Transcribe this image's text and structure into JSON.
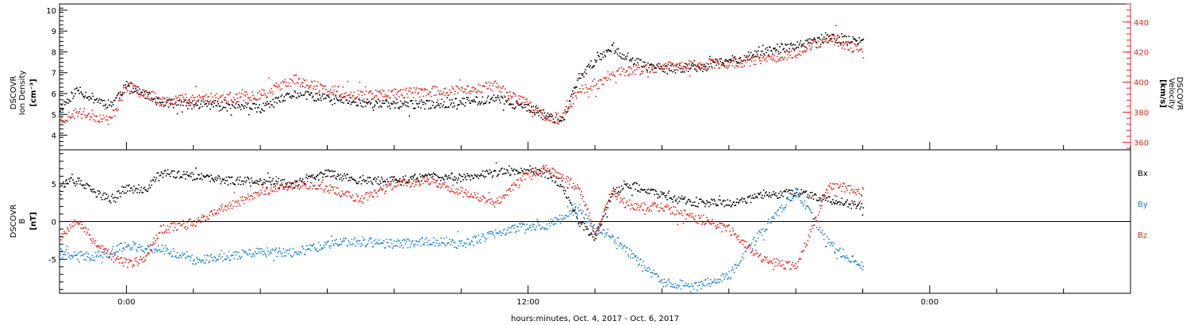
{
  "colors": {
    "black": "#000000",
    "red": "#e8231c",
    "blue": "#1f82d8"
  },
  "xaxis": {
    "label": "hours:minutes, Oct.  4, 2017 - Oct.  6, 2017",
    "range_hours": [
      -2,
      30
    ],
    "ticks": [
      {
        "hour": 0,
        "label": "0:00"
      },
      {
        "hour": 12,
        "label": "12:00"
      },
      {
        "hour": 24,
        "label": "0:00"
      }
    ]
  },
  "chart_data": [
    {
      "type": "scatter",
      "ylabel": [
        "DSCOVR",
        "Ion  Density",
        "[cm⁻³]"
      ],
      "ylim": [
        3.3,
        10.3
      ],
      "yticks": [
        4,
        5,
        6,
        7,
        8,
        9,
        10
      ],
      "right_axis": {
        "ylabel": [
          "DSCOVR",
          "Velocity",
          "[km/s]"
        ],
        "ylim": [
          355,
          452
        ],
        "yticks": [
          360,
          380,
          400,
          420,
          440
        ]
      },
      "series": [
        {
          "color": "black",
          "axis": "left",
          "x": [
            -2,
            -1.5,
            -1,
            -0.5,
            0,
            0.5,
            1,
            2,
            3,
            4,
            5,
            6,
            7,
            8,
            9,
            10,
            11,
            12,
            12.5,
            13,
            13.5,
            14,
            14.5,
            15,
            16,
            17,
            18,
            19,
            20,
            21,
            22
          ],
          "y": [
            5.3,
            6.2,
            5.8,
            5.5,
            6.4,
            6.0,
            5.6,
            5.5,
            5.5,
            5.3,
            6.0,
            5.8,
            5.6,
            5.5,
            5.5,
            5.6,
            5.8,
            5.3,
            5.0,
            4.7,
            6.8,
            7.6,
            8.3,
            7.6,
            7.2,
            7.3,
            7.6,
            8.0,
            8.3,
            8.7,
            8.5
          ]
        },
        {
          "color": "red",
          "axis": "right",
          "x": [
            -2,
            -1.5,
            -1,
            -0.5,
            0,
            0.5,
            1,
            2,
            3,
            4,
            5,
            6,
            7,
            8,
            9,
            10,
            11,
            12,
            12.5,
            13,
            13.5,
            14,
            14.5,
            15,
            16,
            17,
            18,
            19,
            20,
            21,
            22
          ],
          "y": [
            375,
            380,
            378,
            375,
            398,
            394,
            388,
            390,
            390,
            392,
            402,
            395,
            392,
            393,
            394,
            395,
            398,
            385,
            378,
            376,
            396,
            398,
            406,
            408,
            410,
            412,
            413,
            415,
            420,
            430,
            420
          ]
        }
      ]
    },
    {
      "type": "scatter",
      "ylabel": [
        "DSCOVR",
        "B",
        "[nT]"
      ],
      "ylim": [
        -9.5,
        9.5
      ],
      "yticks": [
        -5,
        0,
        5
      ],
      "zero_line": true,
      "legend": {
        "position": "right",
        "entries": [
          {
            "label": "Bx",
            "color": "black"
          },
          {
            "label": "By",
            "color": "blue"
          },
          {
            "label": "Bz",
            "color": "red"
          }
        ]
      },
      "series": [
        {
          "name": "Bx",
          "color": "black",
          "x": [
            -2,
            -1.5,
            -1,
            -0.5,
            0,
            0.5,
            1,
            2,
            3,
            4,
            5,
            6,
            7,
            8,
            9,
            10,
            11,
            12,
            12.5,
            13,
            13.5,
            14,
            14.5,
            15,
            16,
            17,
            18,
            19,
            20,
            21,
            22
          ],
          "y": [
            5.0,
            5.5,
            4.0,
            3.0,
            4.5,
            4.0,
            6.5,
            6.0,
            5.5,
            5.5,
            5.0,
            6.5,
            5.5,
            5.5,
            6.0,
            6.0,
            6.5,
            7.0,
            6.5,
            5.0,
            0.0,
            -2.0,
            4.0,
            5.0,
            3.5,
            2.5,
            2.5,
            3.5,
            4.0,
            3.0,
            2.0
          ]
        },
        {
          "name": "By",
          "color": "blue",
          "x": [
            -2,
            -1.5,
            -1,
            -0.5,
            0,
            0.5,
            1,
            2,
            3,
            4,
            5,
            6,
            7,
            8,
            9,
            10,
            11,
            12,
            12.5,
            13,
            13.5,
            14,
            14.5,
            15,
            16,
            17,
            18,
            19,
            20,
            21,
            22
          ],
          "y": [
            -4.0,
            -4.5,
            -4.5,
            -4.0,
            -3.0,
            -3.5,
            -3.5,
            -5.0,
            -4.5,
            -4.0,
            -4.0,
            -3.0,
            -2.5,
            -3.0,
            -2.5,
            -3.0,
            -1.5,
            -0.5,
            -0.5,
            0.5,
            2.0,
            -1.0,
            -2.0,
            -4.0,
            -8.0,
            -8.5,
            -7.0,
            -1.0,
            4.0,
            -3.0,
            -6.0
          ]
        },
        {
          "name": "Bz",
          "color": "red",
          "x": [
            -2,
            -1.5,
            -1,
            -0.5,
            0,
            0.5,
            1,
            2,
            3,
            4,
            5,
            6,
            7,
            8,
            9,
            10,
            11,
            12,
            12.5,
            13,
            13.5,
            14,
            14.5,
            15,
            16,
            17,
            18,
            19,
            20,
            21,
            22
          ],
          "y": [
            -2.0,
            0.5,
            -2.5,
            -4.5,
            -5.5,
            -5.0,
            -1.0,
            0.0,
            2.0,
            4.0,
            5.0,
            4.5,
            3.0,
            5.0,
            5.5,
            4.0,
            2.5,
            6.5,
            7.0,
            6.0,
            4.5,
            -1.5,
            4.0,
            2.0,
            2.0,
            0.5,
            -1.0,
            -5.0,
            -6.0,
            5.0,
            4.0
          ]
        }
      ]
    }
  ]
}
